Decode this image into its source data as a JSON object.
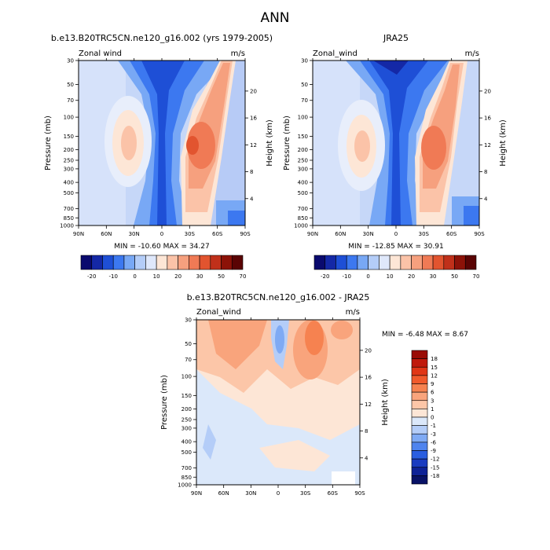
{
  "page_title": "ANN",
  "chart_data": [
    {
      "type": "heatmap",
      "id": "model",
      "title": "b.e13.B20TRC5CN.ne120_g16.002 (yrs 1979-2005)",
      "left_label": "Zonal wind",
      "right_label": "m/s",
      "ylabel": "Pressure (mb)",
      "y2label": "Height (km)",
      "xticks": [
        "90N",
        "60N",
        "30N",
        "0",
        "30S",
        "60S",
        "90S"
      ],
      "yticks": [
        "30",
        "50",
        "70",
        "100",
        "150",
        "200",
        "250",
        "300",
        "400",
        "500",
        "700",
        "850",
        "1000"
      ],
      "y2ticks": [
        "20",
        "16",
        "12",
        "8",
        "4"
      ],
      "min_max_text": "MIN = -10.60   MAX =  34.27",
      "min": -10.6,
      "max": 34.27,
      "colorbar_labels": [
        "-20",
        "-10",
        "0",
        "10",
        "20",
        "30",
        "50",
        "70"
      ],
      "colorbar_colors": [
        "#0a0a6e",
        "#1428a6",
        "#1e4fd6",
        "#3c78f0",
        "#78a8f5",
        "#b4cdf8",
        "#dfe8fb",
        "#fde6d6",
        "#fbc3a8",
        "#f6a07e",
        "#f07a55",
        "#e2542f",
        "#c0301a",
        "#8c1208",
        "#5a0404"
      ]
    },
    {
      "type": "heatmap",
      "id": "obs",
      "title": "JRA25",
      "left_label": "Zonal_wind",
      "right_label": "m/s",
      "ylabel": "Pressure (mb)",
      "y2label": "Height (km)",
      "xticks": [
        "90N",
        "60N",
        "30N",
        "0",
        "30S",
        "60S",
        "90S"
      ],
      "yticks": [
        "30",
        "50",
        "70",
        "100",
        "150",
        "200",
        "250",
        "300",
        "400",
        "500",
        "700",
        "850",
        "1000"
      ],
      "y2ticks": [
        "20",
        "16",
        "12",
        "8",
        "4"
      ],
      "min_max_text": "MIN = -12.85   MAX =  30.91",
      "min": -12.85,
      "max": 30.91,
      "colorbar_labels": [
        "-20",
        "-10",
        "0",
        "10",
        "20",
        "30",
        "50",
        "70"
      ]
    },
    {
      "type": "heatmap",
      "id": "diff",
      "title": "b.e13.B20TRC5CN.ne120_g16.002 - JRA25",
      "left_label": "Zonal_wind",
      "right_label": "m/s",
      "ylabel": "Pressure (mb)",
      "y2label": "Height (km)",
      "xticks": [
        "90N",
        "60N",
        "30N",
        "0",
        "30S",
        "60S",
        "90S"
      ],
      "yticks": [
        "30",
        "50",
        "70",
        "100",
        "150",
        "200",
        "250",
        "300",
        "400",
        "500",
        "700",
        "850",
        "1000"
      ],
      "y2ticks": [
        "20",
        "16",
        "12",
        "8",
        "4"
      ],
      "min_max_text": "MIN =  -6.48   MAX =   8.67",
      "min": -6.48,
      "max": 8.67,
      "colorbar_labels": [
        "18",
        "15",
        "12",
        "9",
        "6",
        "3",
        "1",
        "0",
        "-1",
        "-3",
        "-6",
        "-9",
        "-12",
        "-15",
        "-18"
      ],
      "colorbar_colors": [
        "#9a0c06",
        "#c01a0c",
        "#e03616",
        "#f05a2c",
        "#f68250",
        "#f9a47c",
        "#fcc6a8",
        "#fde6d6",
        "#dbe8fa",
        "#b4cdf8",
        "#7faaf4",
        "#4f84ee",
        "#2a5ee0",
        "#1a3cc0",
        "#0e2296",
        "#081266"
      ]
    }
  ]
}
